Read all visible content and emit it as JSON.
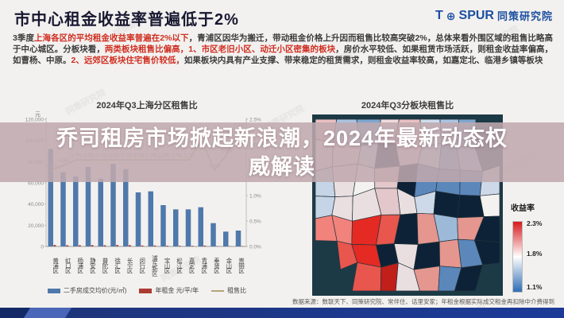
{
  "header": {
    "title": "市中心租金收益率普遍低于2%",
    "logo": {
      "brand_t": "T",
      "globe_icon": "⊕",
      "brand_rest": "SPUR",
      "suffix": "同策研究院",
      "color": "#1c4fa0"
    }
  },
  "watermark": "同策研究院",
  "summary": {
    "segments": [
      {
        "text": "3季度",
        "highlight": false
      },
      {
        "text": "上海各区的平均租金收益率普遍在2%以下",
        "highlight": true
      },
      {
        "text": "，青浦区因华为搬迁，带动租金价格上升因而租售比较高突破2%，总体来看外围区域的租售比略高于中心城区。分板块看，",
        "highlight": false
      },
      {
        "text": "两类板块租售比偏高，1、市区老旧小区、动迁小区密集的板块",
        "highlight": true
      },
      {
        "text": "，房价水平较低、如果租赁市场活跃，则租金收益率偏高，如曹杨、中原。",
        "highlight": false
      },
      {
        "text": "2、远郊区板块住宅售价较低，",
        "highlight": true
      },
      {
        "text": "如果板块内具有产业支撑、带来稳定的租赁需求，则租金收益率较高，如嘉定北、临港乡镇等板块",
        "highlight": false
      }
    ]
  },
  "overlay": {
    "line1": "乔司租房市场掀起新浪潮，2024年最新动态权",
    "line2": "威解读"
  },
  "chart_data": [
    {
      "type": "bar",
      "title": "2024年Q3上海分区租售比",
      "unit_left": "元",
      "categories": [
        "黄浦区",
        "虹口区",
        "杨浦区",
        "静安区",
        "普陀区",
        "徐汇区",
        "长宁区",
        "闵行区",
        "浦东新区",
        "宝山区",
        "松江区",
        "嘉定区",
        "青浦区",
        "奉贤区",
        "金山区",
        "崇明区"
      ],
      "series": [
        {
          "name": "二手房成交均价(元/㎡)",
          "type": "bar",
          "color": "#4f79ab",
          "axis": "left",
          "values": [
            92000,
            70000,
            66000,
            75000,
            64000,
            78000,
            73000,
            51000,
            52000,
            39000,
            35000,
            35000,
            37000,
            22000,
            14000,
            15000
          ]
        },
        {
          "name": "年租金 元/平/年",
          "type": "bar",
          "color": "#ac3b32",
          "axis": "left",
          "values": [
            1380,
            1120,
            1120,
            1280,
            1090,
            1330,
            1240,
            870,
            880,
            660,
            600,
            600,
            780,
            330,
            250,
            350
          ]
        },
        {
          "name": "租售比",
          "type": "line",
          "color": "#b4a476",
          "axis": "right",
          "values": [
            1.5,
            1.6,
            1.7,
            1.7,
            1.7,
            1.7,
            1.7,
            1.7,
            1.7,
            1.7,
            1.7,
            1.7,
            2.1,
            1.5,
            1.8,
            2.3
          ],
          "labels": [
            "1.5%",
            "1.6%",
            "1.7%",
            "1.7%",
            "1.7%",
            "1.7%",
            "1.7%",
            "1.7%",
            "1.7%",
            "1.7%",
            "1.7%",
            "1.7%",
            "2.1%",
            "1.5%",
            "1.8%",
            "2.3%"
          ]
        }
      ],
      "ylim_left": [
        0,
        120000
      ],
      "ylim_right": [
        0,
        2.5
      ],
      "left_ticks": [
        "0",
        "20,000",
        "40,000",
        "60,000",
        "80,000",
        "100,000",
        "120,000"
      ],
      "right_ticks": [
        "0.0%",
        "0.5%",
        "1.0%",
        "1.5%",
        "2.0%",
        "2.5%"
      ],
      "legend_position": "bottom",
      "grid": false
    },
    {
      "type": "heatmap",
      "title": "2024年Q3分板块租售比",
      "legend_title": "收益率",
      "scale": [
        {
          "label": "2.3%",
          "color": "#d7191c"
        },
        {
          "label": "1.8%",
          "color": "#ffffff"
        },
        {
          "label": "1.1%",
          "color": "#2f6db5"
        }
      ],
      "map_background": "#1c3a46",
      "palette": {
        "dark": "#0d2236",
        "reds": [
          "#e42a23",
          "#e8564d",
          "#c01f1a",
          "#f2827c"
        ],
        "north": [
          "#a9c3e0",
          "#cfdcec",
          "#e9bfc3",
          "#f0dadd",
          "#7ea6cf"
        ],
        "east": [
          "#5b87bb",
          "#cdd9e8",
          "#f4f2f0",
          "#e4968f",
          "#9db9d8"
        ],
        "center": [
          "#f4f2f0",
          "#e3c7ca",
          "#c5d4e6",
          "#eadfe0",
          "#8fb0d4"
        ]
      }
    }
  ],
  "footer": {
    "source": "数据来源：数联天下、同策研究院、常伴住、话里安家；年租金根据实际成交租金再扣除中介费得到"
  }
}
